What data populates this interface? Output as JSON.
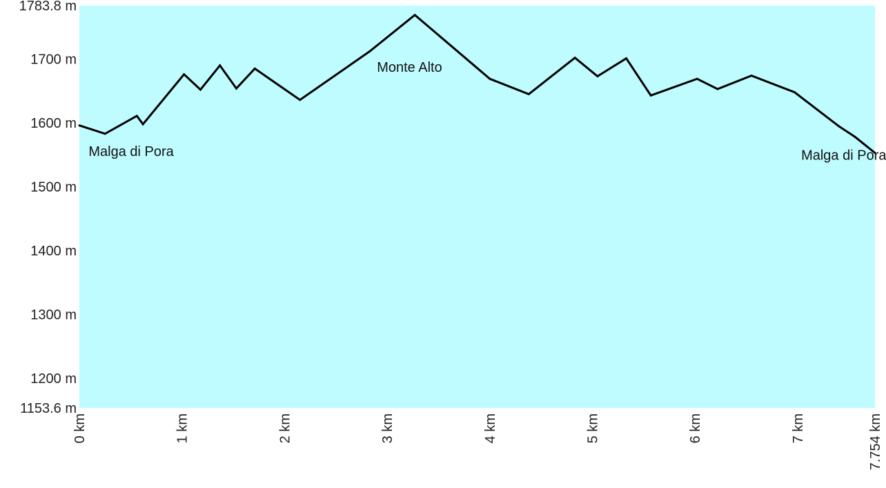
{
  "chart_data": {
    "type": "area",
    "title": "",
    "xlabel": "",
    "ylabel": "",
    "xlim": [
      0,
      7.754
    ],
    "ylim": [
      1153.6,
      1783.8
    ],
    "plot_bg": "#bffcff",
    "line_color": "#000000",
    "y_ticks": [
      {
        "value": 1153.6,
        "label": "1153.6 m"
      },
      {
        "value": 1200,
        "label": "1200 m"
      },
      {
        "value": 1300,
        "label": "1300 m"
      },
      {
        "value": 1400,
        "label": "1400 m"
      },
      {
        "value": 1500,
        "label": "1500 m"
      },
      {
        "value": 1600,
        "label": "1600 m"
      },
      {
        "value": 1700,
        "label": "1700 m"
      },
      {
        "value": 1783.8,
        "label": "1783.8 m"
      }
    ],
    "x_ticks": [
      {
        "value": 0,
        "label": "0 km"
      },
      {
        "value": 1,
        "label": "1 km"
      },
      {
        "value": 2,
        "label": "2 km"
      },
      {
        "value": 3,
        "label": "3 km"
      },
      {
        "value": 4,
        "label": "4 km"
      },
      {
        "value": 5,
        "label": "5 km"
      },
      {
        "value": 6,
        "label": "6 km"
      },
      {
        "value": 7,
        "label": "7 km"
      },
      {
        "value": 7.754,
        "label": "7.754 km"
      }
    ],
    "series": [
      {
        "points": [
          [
            0,
            1596
          ],
          [
            0.25,
            1583
          ],
          [
            0.56,
            1611
          ],
          [
            0.62,
            1598
          ],
          [
            1.02,
            1676
          ],
          [
            1.18,
            1652
          ],
          [
            1.37,
            1690
          ],
          [
            1.53,
            1654
          ],
          [
            1.71,
            1685
          ],
          [
            2.15,
            1636
          ],
          [
            2.83,
            1712
          ],
          [
            3.27,
            1769
          ],
          [
            4.0,
            1669
          ],
          [
            4.38,
            1645
          ],
          [
            4.83,
            1702
          ],
          [
            5.05,
            1673
          ],
          [
            5.33,
            1701
          ],
          [
            5.57,
            1643
          ],
          [
            6.02,
            1669
          ],
          [
            6.22,
            1653
          ],
          [
            6.55,
            1674
          ],
          [
            6.97,
            1648
          ],
          [
            7.4,
            1595
          ],
          [
            7.56,
            1578
          ],
          [
            7.754,
            1553
          ]
        ]
      }
    ],
    "annotations": [
      {
        "text": "Malga di Pora",
        "x": 0.09,
        "y": 1548,
        "anchor": "start"
      },
      {
        "text": "Monte Alto",
        "x": 2.9,
        "y": 1680,
        "anchor": "start"
      },
      {
        "text": "Malga di Pora",
        "x": 7.45,
        "y": 1542,
        "anchor": "middle"
      }
    ]
  }
}
